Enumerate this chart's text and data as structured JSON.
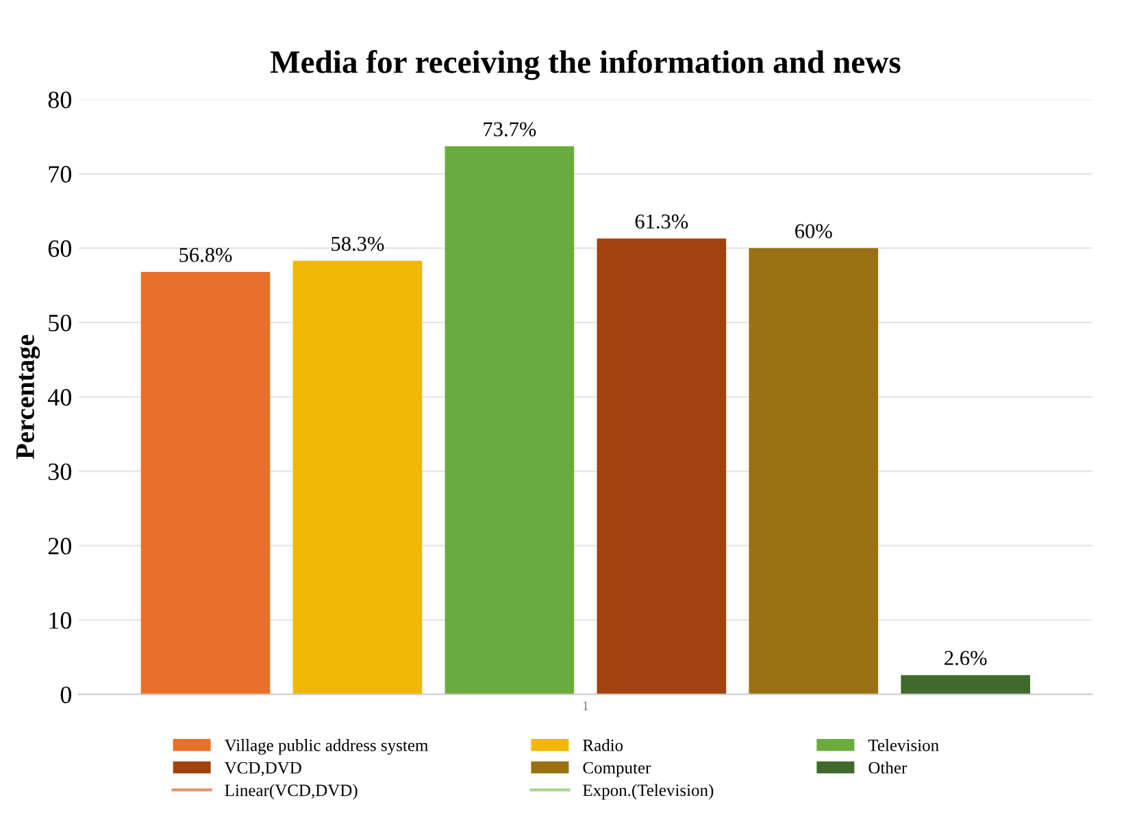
{
  "chart_data": {
    "type": "bar",
    "title": "Media for receiving the information and news",
    "ylabel": "Percentage",
    "categories": [
      "1"
    ],
    "series": [
      {
        "name": "Village public address system",
        "color": "#e8702a",
        "values": [
          56.8
        ],
        "value_labels": [
          "56.8%"
        ]
      },
      {
        "name": "Radio",
        "color": "#f2b705",
        "values": [
          58.3
        ],
        "value_labels": [
          "58.3%"
        ]
      },
      {
        "name": "Television",
        "color": "#6aab3e",
        "values": [
          73.7
        ],
        "value_labels": [
          "73.7%"
        ]
      },
      {
        "name": "VCD,DVD",
        "color": "#a2420e",
        "values": [
          61.3
        ],
        "value_labels": [
          "61.3%"
        ]
      },
      {
        "name": "Computer",
        "color": "#9a7012",
        "values": [
          60
        ],
        "value_labels": [
          "60%"
        ]
      },
      {
        "name": "Other",
        "color": "#3f6b2a",
        "values": [
          2.6
        ],
        "value_labels": [
          "2.6%"
        ]
      },
      {
        "name": "Linear(VCD,DVD)",
        "color": "#e0956a",
        "type": "line",
        "values": [
          null
        ]
      },
      {
        "name": "Expon.(Television)",
        "color": "#a8d488",
        "type": "line",
        "values": [
          null
        ]
      }
    ],
    "ylim": [
      0,
      80
    ],
    "yticks": [
      0,
      10,
      20,
      30,
      40,
      50,
      60,
      70,
      80
    ],
    "grid": "y",
    "legend": "bottom"
  }
}
